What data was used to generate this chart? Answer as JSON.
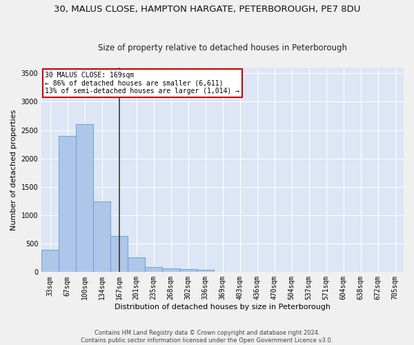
{
  "title_line1": "30, MALUS CLOSE, HAMPTON HARGATE, PETERBOROUGH, PE7 8DU",
  "title_line2": "Size of property relative to detached houses in Peterborough",
  "xlabel": "Distribution of detached houses by size in Peterborough",
  "ylabel": "Number of detached properties",
  "categories": [
    "33sqm",
    "67sqm",
    "100sqm",
    "134sqm",
    "167sqm",
    "201sqm",
    "235sqm",
    "268sqm",
    "302sqm",
    "336sqm",
    "369sqm",
    "403sqm",
    "436sqm",
    "470sqm",
    "504sqm",
    "537sqm",
    "571sqm",
    "604sqm",
    "638sqm",
    "672sqm",
    "705sqm"
  ],
  "values": [
    390,
    2400,
    2600,
    1240,
    640,
    255,
    95,
    60,
    55,
    40,
    0,
    0,
    0,
    0,
    0,
    0,
    0,
    0,
    0,
    0,
    0
  ],
  "bar_color": "#aec6e8",
  "bar_edge_color": "#5b9bd5",
  "vline_x_index": 4,
  "vline_color": "#333333",
  "annotation_line1": "30 MALUS CLOSE: 169sqm",
  "annotation_line2": "← 86% of detached houses are smaller (6,611)",
  "annotation_line3": "13% of semi-detached houses are larger (1,014) →",
  "annotation_box_color": "#ffffff",
  "annotation_border_color": "#cc0000",
  "ylim": [
    0,
    3600
  ],
  "yticks": [
    0,
    500,
    1000,
    1500,
    2000,
    2500,
    3000,
    3500
  ],
  "plot_bg_color": "#dce6f5",
  "grid_color": "#ffffff",
  "fig_bg_color": "#f0f0f0",
  "footer_line1": "Contains HM Land Registry data © Crown copyright and database right 2024.",
  "footer_line2": "Contains public sector information licensed under the Open Government Licence v3.0.",
  "title_fontsize": 9.5,
  "subtitle_fontsize": 8.5,
  "axis_label_fontsize": 8,
  "tick_fontsize": 7,
  "annotation_fontsize": 7,
  "footer_fontsize": 6
}
